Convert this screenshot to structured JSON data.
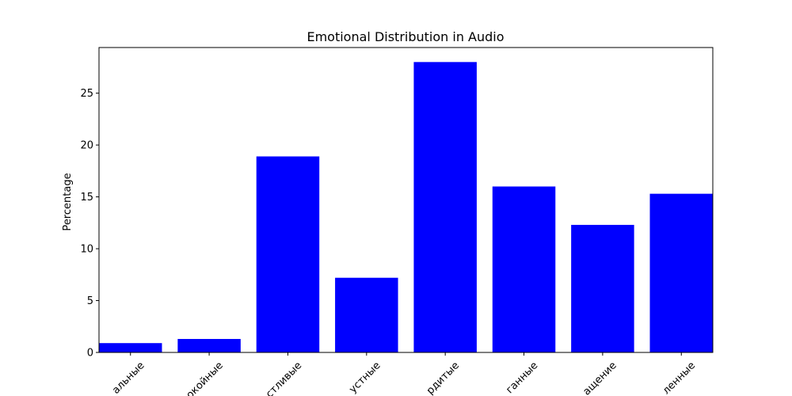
{
  "chart_data": {
    "type": "bar",
    "title": "Emotional Distribution in Audio",
    "xlabel": "",
    "ylabel": "Percentage",
    "categories": [
      "альные",
      "окойные",
      "стливые",
      "устные",
      "рдитые",
      "ганные",
      "ащение",
      "ленные"
    ],
    "values": [
      0.9,
      1.3,
      18.9,
      7.2,
      28.0,
      16.0,
      12.3,
      15.3
    ],
    "ylim": [
      0,
      29.4
    ],
    "yticks": [
      0,
      5,
      10,
      15,
      20,
      25
    ],
    "bar_color": "#0000ff",
    "grid": false,
    "xtick_rotation": 45
  }
}
